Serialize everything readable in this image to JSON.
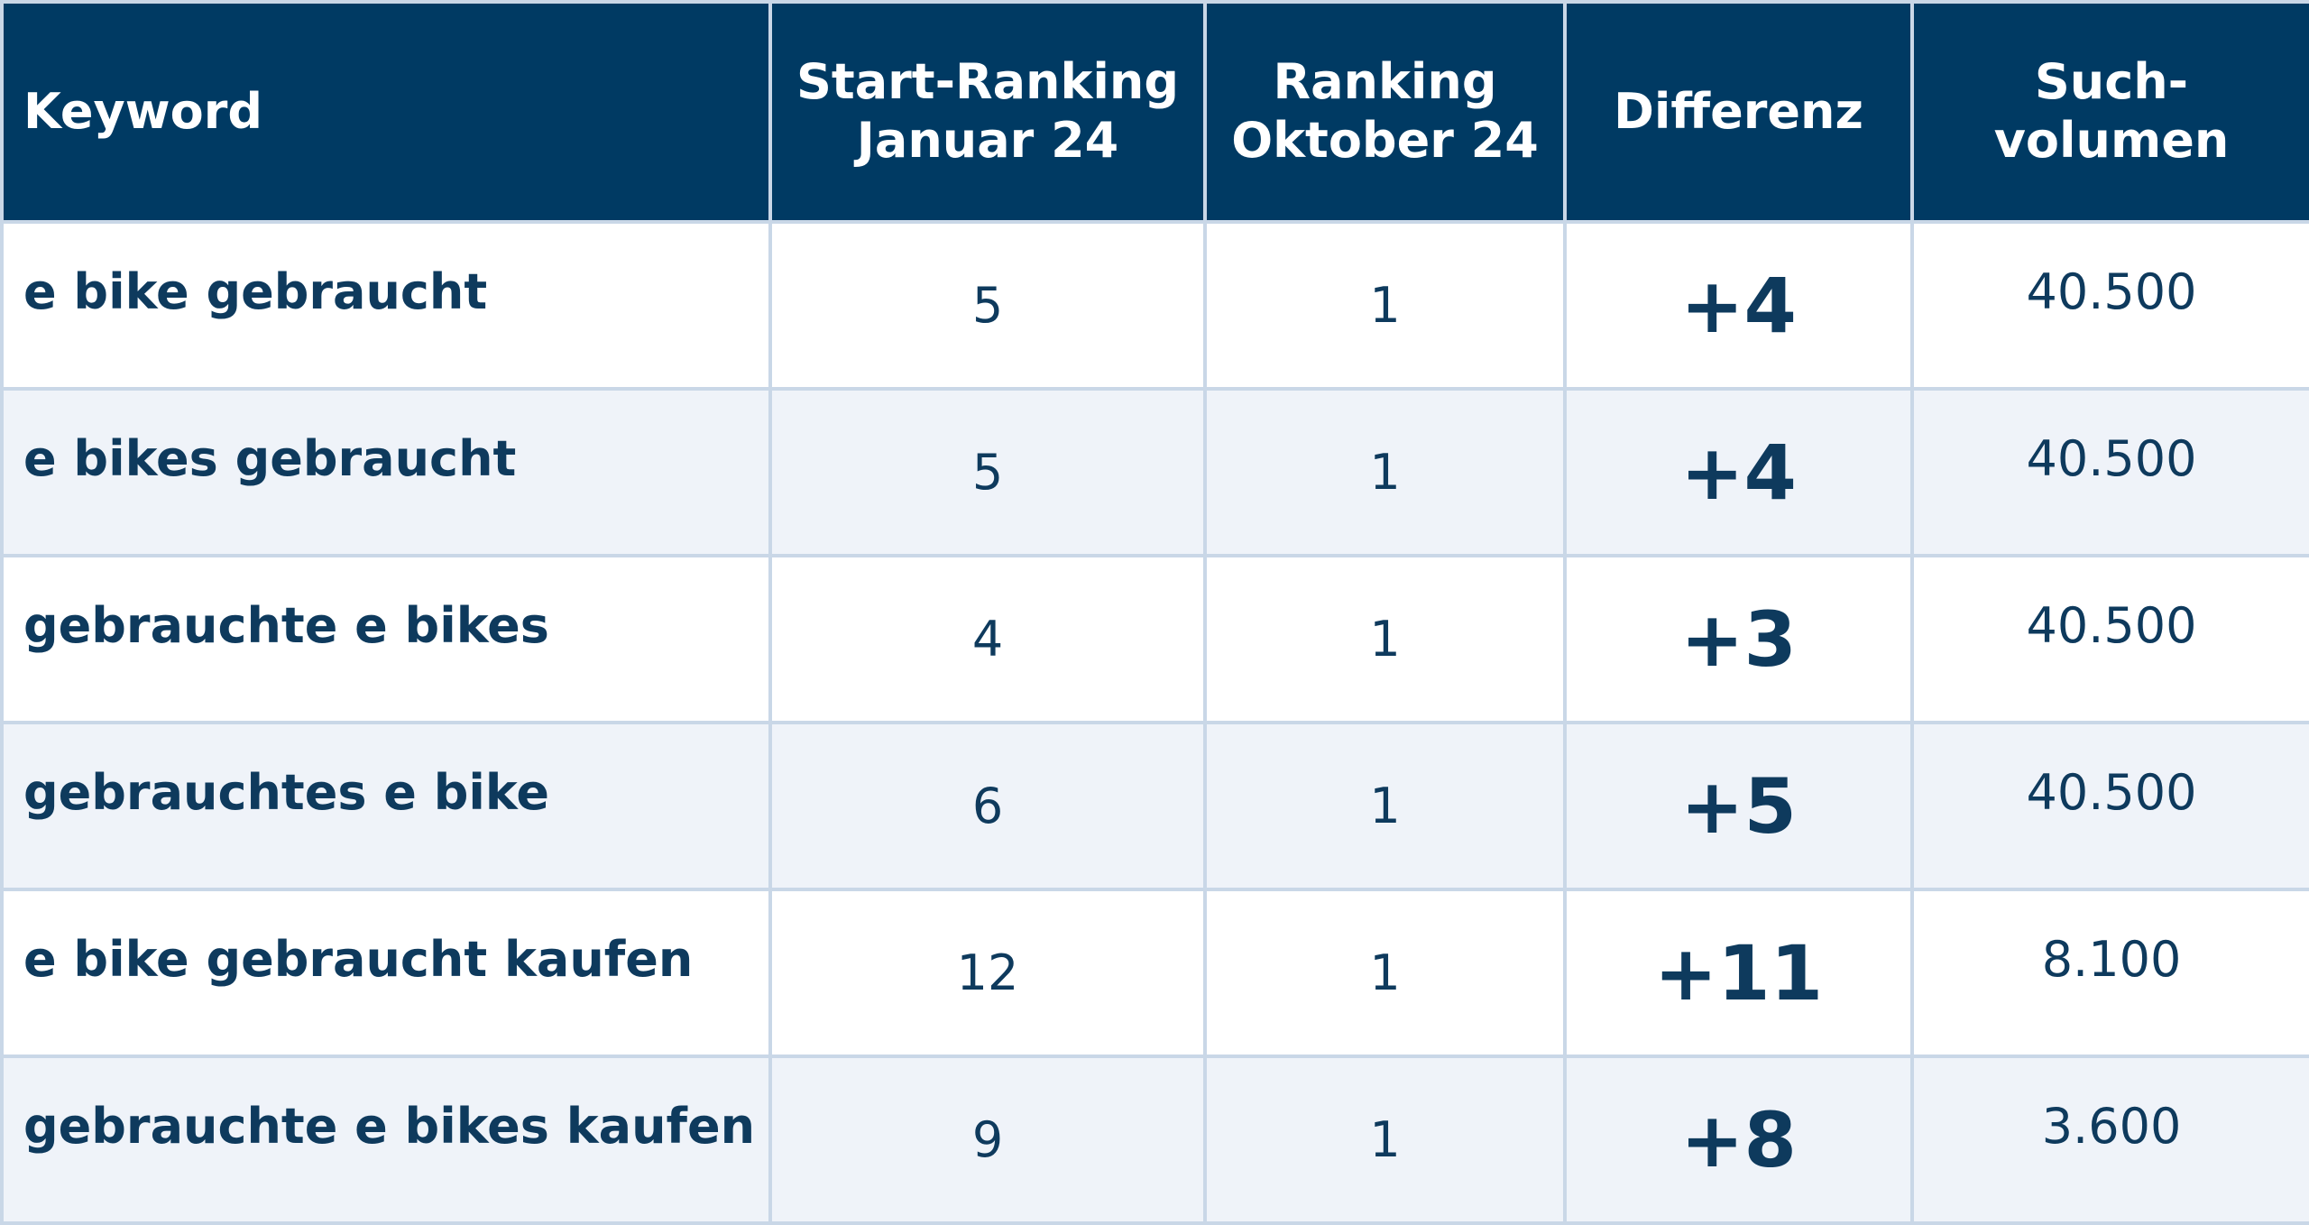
{
  "table": {
    "headers": [
      [
        "Keyword"
      ],
      [
        "Start-Ranking",
        "Januar 24"
      ],
      [
        "Ranking",
        "Oktober 24"
      ],
      [
        "Differenz"
      ],
      [
        "Such-",
        "volumen"
      ]
    ],
    "rows": [
      [
        "e bike gebraucht",
        "5",
        "1",
        "+4",
        "40.500"
      ],
      [
        "e bikes gebraucht",
        "5",
        "1",
        "+4",
        "40.500"
      ],
      [
        "gebrauchte e bikes",
        "4",
        "1",
        "+3",
        "40.500"
      ],
      [
        "gebrauchtes e bike",
        "6",
        "1",
        "+5",
        "40.500"
      ],
      [
        "e bike gebraucht kaufen",
        "12",
        "1",
        "+11",
        "8.100"
      ],
      [
        "gebrauchte e bikes kaufen",
        "9",
        "1",
        "+8",
        "3.600"
      ]
    ]
  }
}
